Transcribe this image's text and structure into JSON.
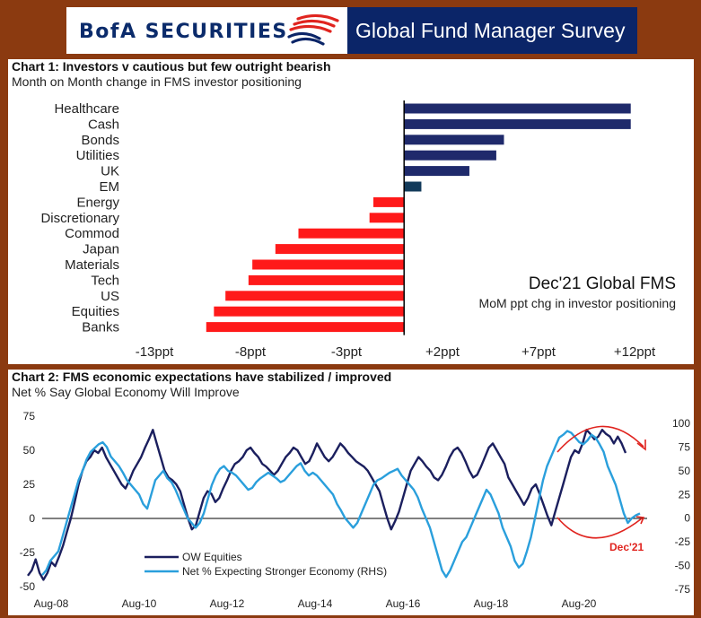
{
  "header": {
    "brand": "BofA SECURITIES",
    "survey_title": "Global Fund Manager Survey",
    "colors": {
      "navy": "#0b2568",
      "red": "#e0241f",
      "frame": "#8b3a10"
    }
  },
  "chart_data": [
    {
      "type": "bar",
      "orientation": "horizontal",
      "title": "Chart 1: Investors v cautious  but few outright bearish",
      "subtitle": "Month on Month change in FMS investor positioning",
      "categories": [
        "Healthcare",
        "Cash",
        "Bonds",
        "Utilities",
        "UK",
        "EM",
        "Energy",
        "Discretionary",
        "Commod",
        "Japan",
        "Materials",
        "Tech",
        "US",
        "Equities",
        "Banks"
      ],
      "values": [
        11.8,
        11.8,
        5.2,
        4.8,
        3.4,
        0.9,
        -1.6,
        -1.8,
        -5.5,
        -6.7,
        -7.9,
        -8.1,
        -9.3,
        -9.9,
        -10.3
      ],
      "xlim": [
        -13,
        12
      ],
      "xticks": [
        -13,
        -8,
        -3,
        2,
        7,
        12
      ],
      "xtick_labels": [
        "-13ppt",
        "-8ppt",
        "-3ppt",
        "+2ppt",
        "+7ppt",
        "+12ppt"
      ],
      "colors": {
        "positive": "#1f2a6b",
        "em": "#123a5a",
        "negative": "#ff1a1a"
      },
      "annotation_title": "Dec'21 Global FMS",
      "annotation_sub": "MoM ppt chg in investor positioning"
    },
    {
      "type": "line",
      "title": "Chart 2: FMS economic expectations have stabilized / improved",
      "subtitle": "Net % Say Global Economy Will Improve",
      "x_labels": [
        "Aug-08",
        "Aug-10",
        "Aug-12",
        "Aug-14",
        "Aug-16",
        "Aug-18",
        "Aug-20"
      ],
      "x_range": [
        "2008-07",
        "2021-12"
      ],
      "left_axis": {
        "ylim": [
          -50,
          75
        ],
        "ticks": [
          -50,
          -25,
          0,
          25,
          50,
          75
        ]
      },
      "right_axis": {
        "ylim": [
          -75,
          100
        ],
        "ticks": [
          -75,
          -50,
          -25,
          0,
          25,
          50,
          75,
          100
        ]
      },
      "series": [
        {
          "name": "OW Equities",
          "axis": "left",
          "color": "#1b1f5e",
          "y": [
            -42,
            -38,
            -30,
            -40,
            -45,
            -40,
            -32,
            -35,
            -28,
            -20,
            -10,
            0,
            12,
            25,
            35,
            42,
            45,
            50,
            48,
            52,
            45,
            40,
            35,
            30,
            25,
            22,
            28,
            35,
            40,
            45,
            52,
            58,
            65,
            55,
            45,
            35,
            30,
            28,
            25,
            20,
            10,
            0,
            -8,
            -5,
            5,
            15,
            20,
            18,
            12,
            15,
            22,
            28,
            35,
            40,
            42,
            45,
            50,
            52,
            48,
            45,
            40,
            38,
            35,
            32,
            35,
            40,
            45,
            48,
            52,
            50,
            45,
            40,
            42,
            48,
            55,
            50,
            45,
            42,
            45,
            50,
            55,
            52,
            48,
            45,
            42,
            40,
            38,
            35,
            30,
            25,
            20,
            10,
            0,
            -8,
            -2,
            5,
            15,
            25,
            35,
            40,
            45,
            42,
            38,
            35,
            30,
            28,
            32,
            38,
            45,
            50,
            52,
            48,
            42,
            35,
            30,
            32,
            38,
            45,
            52,
            55,
            50,
            45,
            40,
            30,
            25,
            20,
            15,
            10,
            15,
            22,
            25,
            18,
            10,
            2,
            -5,
            5,
            15,
            25,
            35,
            45,
            50,
            48,
            55,
            65,
            62,
            58,
            60,
            65,
            62,
            60,
            55,
            60,
            55,
            48
          ]
        },
        {
          "name": "Net % Expecting Stronger Economy (RHS)",
          "axis": "right",
          "color": "#2a9fdc",
          "y": [
            -60,
            -55,
            -45,
            -40,
            -35,
            -20,
            -5,
            10,
            25,
            40,
            50,
            62,
            70,
            74,
            78,
            80,
            75,
            65,
            60,
            55,
            48,
            40,
            35,
            30,
            25,
            15,
            10,
            25,
            40,
            45,
            50,
            42,
            38,
            30,
            20,
            10,
            0,
            -5,
            -10,
            -5,
            5,
            20,
            35,
            45,
            52,
            55,
            50,
            48,
            45,
            40,
            35,
            30,
            32,
            38,
            42,
            45,
            48,
            45,
            42,
            38,
            40,
            45,
            50,
            55,
            58,
            50,
            45,
            48,
            45,
            40,
            35,
            30,
            25,
            15,
            8,
            0,
            -5,
            -10,
            -5,
            5,
            15,
            25,
            35,
            40,
            42,
            45,
            48,
            50,
            52,
            45,
            40,
            35,
            30,
            22,
            10,
            0,
            -10,
            -25,
            -40,
            -55,
            -62,
            -55,
            -45,
            -35,
            -25,
            -20,
            -10,
            0,
            10,
            20,
            30,
            25,
            15,
            5,
            -10,
            -20,
            -30,
            -45,
            -52,
            -48,
            -35,
            -20,
            0,
            20,
            40,
            55,
            65,
            75,
            85,
            88,
            92,
            90,
            85,
            80,
            78,
            82,
            88,
            85,
            78,
            70,
            55,
            45,
            35,
            20,
            5,
            -5,
            0,
            3,
            5
          ]
        }
      ],
      "annotation": "Dec'21"
    }
  ]
}
